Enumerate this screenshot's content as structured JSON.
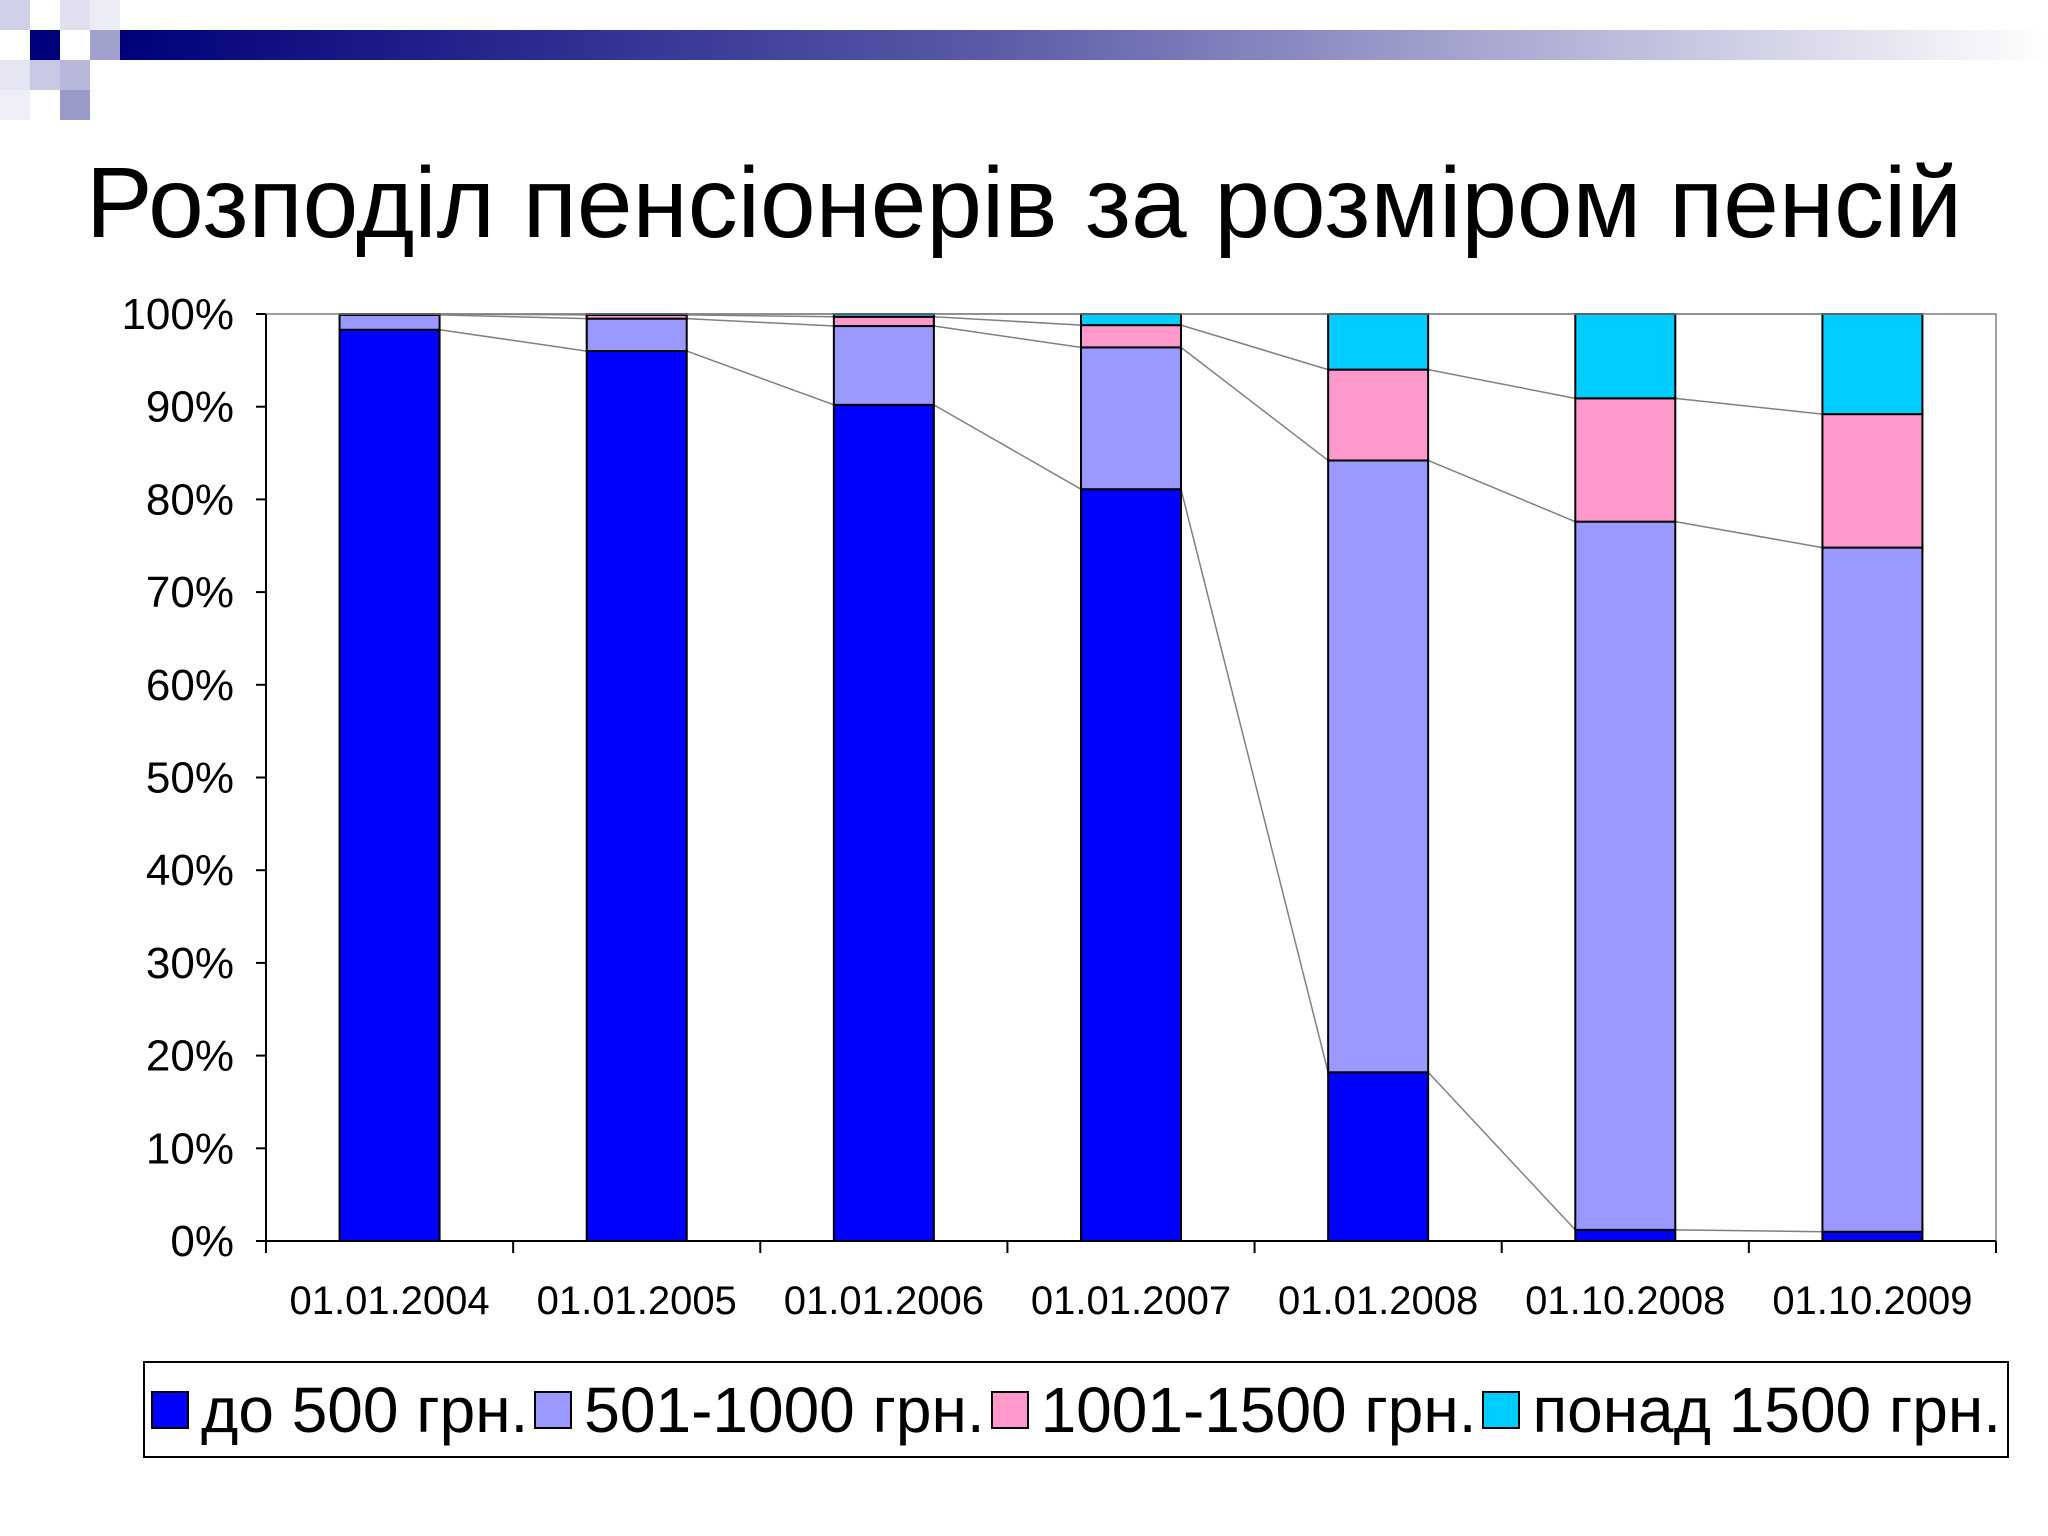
{
  "slide": {
    "title": "Розподіл пенсіонерів за розміром пенсій"
  },
  "chart_data": {
    "type": "bar",
    "stacked": "percent",
    "categories": [
      "01.01.2004",
      "01.01.2005",
      "01.01.2006",
      "01.01.2007",
      "01.01.2008",
      "01.10.2008",
      "01.10.2009"
    ],
    "series": [
      {
        "name": "до 500 грн.",
        "color": "#0000ff",
        "values": [
          98.3,
          96.0,
          90.2,
          81.1,
          18.2,
          1.2,
          1.0
        ]
      },
      {
        "name": "501-1000 грн.",
        "color": "#9999ff",
        "values": [
          1.6,
          3.5,
          8.5,
          15.3,
          66.0,
          76.4,
          73.8
        ]
      },
      {
        "name": "1001-1500 грн.",
        "color": "#ff99cc",
        "values": [
          0.1,
          0.4,
          1.0,
          2.4,
          9.8,
          13.3,
          14.4
        ]
      },
      {
        "name": "понад 1500 грн.",
        "color": "#00ccff",
        "values": [
          0.0,
          0.1,
          0.3,
          1.2,
          6.0,
          9.1,
          10.8
        ]
      }
    ],
    "yticks": [
      "0%",
      "10%",
      "20%",
      "30%",
      "40%",
      "50%",
      "60%",
      "70%",
      "80%",
      "90%",
      "100%"
    ],
    "ylim": [
      0,
      100
    ],
    "series_lines": true,
    "legend_position": "bottom",
    "grid": false
  }
}
